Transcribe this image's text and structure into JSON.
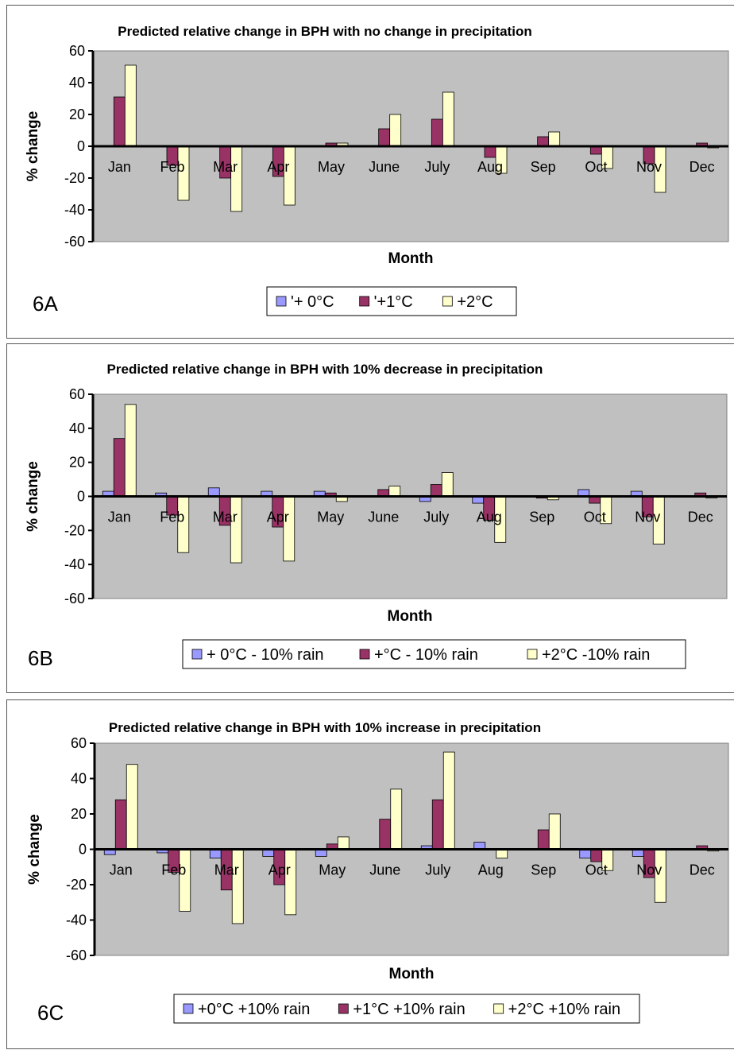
{
  "colors": {
    "plot_bg": "#c0c0c0",
    "series": [
      "#9999ff",
      "#993366",
      "#ffffcc"
    ]
  },
  "chart_data": [
    {
      "type": "bar",
      "panel_label": "6A",
      "title": "Predicted relative change in BPH with no change in precipitation",
      "xlabel": "Month",
      "ylabel": "% change",
      "ylim": [
        -60,
        60
      ],
      "yticks": [
        "60",
        "40",
        "20",
        "0",
        "-20",
        "-40",
        "-60"
      ],
      "grid": false,
      "legend_position": "bottom-center",
      "categories": [
        "Jan",
        "Feb",
        "Mar",
        "Apr",
        "May",
        "June",
        "July",
        "Aug",
        "Sep",
        "Oct",
        "Nov",
        "Dec"
      ],
      "series": [
        {
          "name": "'+ 0°C",
          "values": [
            0,
            0,
            0,
            0,
            0,
            0,
            0,
            0,
            0,
            0,
            0,
            0
          ]
        },
        {
          "name": "'+1°C",
          "values": [
            31,
            -12,
            -20,
            -19,
            2,
            11,
            17,
            -7,
            6,
            -5,
            -11,
            2
          ]
        },
        {
          "name": "+2°C",
          "values": [
            51,
            -34,
            -41,
            -37,
            2,
            20,
            34,
            -17,
            9,
            -14,
            -29,
            -1
          ]
        }
      ]
    },
    {
      "type": "bar",
      "panel_label": "6B",
      "title": "Predicted relative change in BPH with 10% decrease in precipitation",
      "xlabel": "Month",
      "ylabel": "% change",
      "ylim": [
        -60,
        60
      ],
      "yticks": [
        "60",
        "40",
        "20",
        "0",
        "-20",
        "-40",
        "-60"
      ],
      "grid": false,
      "legend_position": "bottom-center",
      "categories": [
        "Jan",
        "Feb",
        "Mar",
        "Apr",
        "May",
        "June",
        "July",
        "Aug",
        "Sep",
        "Oct",
        "Nov",
        "Dec"
      ],
      "series": [
        {
          "name": "+ 0°C - 10% rain",
          "values": [
            3,
            2,
            5,
            3,
            3,
            0,
            -3,
            -4,
            0,
            4,
            3,
            0
          ]
        },
        {
          "name": "+°C - 10% rain",
          "values": [
            34,
            -11,
            -17,
            -18,
            2,
            4,
            7,
            -14,
            -1,
            -4,
            -12,
            2
          ]
        },
        {
          "name": "+2°C -10% rain",
          "values": [
            54,
            -33,
            -39,
            -38,
            -3,
            6,
            14,
            -27,
            -2,
            -16,
            -28,
            -1
          ]
        }
      ]
    },
    {
      "type": "bar",
      "panel_label": "6C",
      "title": "Predicted relative change in BPH with 10% increase in precipitation",
      "xlabel": "Month",
      "ylabel": "% change",
      "ylim": [
        -60,
        60
      ],
      "yticks": [
        "60",
        "40",
        "20",
        "0",
        "-20",
        "-40",
        "-60"
      ],
      "grid": false,
      "legend_position": "bottom-center",
      "categories": [
        "Jan",
        "Feb",
        "Mar",
        "Apr",
        "May",
        "June",
        "July",
        "Aug",
        "Sep",
        "Oct",
        "Nov",
        "Dec"
      ],
      "series": [
        {
          "name": "+0°C +10% rain",
          "values": [
            -3,
            -2,
            -5,
            -4,
            -4,
            0,
            2,
            4,
            0,
            -5,
            -4,
            0
          ]
        },
        {
          "name": "+1°C +10% rain",
          "values": [
            28,
            -13,
            -23,
            -20,
            3,
            17,
            28,
            0,
            11,
            -7,
            -16,
            2
          ]
        },
        {
          "name": "+2°C +10% rain",
          "values": [
            48,
            -35,
            -42,
            -37,
            7,
            34,
            55,
            -5,
            20,
            -12,
            -30,
            -1
          ]
        }
      ]
    }
  ]
}
